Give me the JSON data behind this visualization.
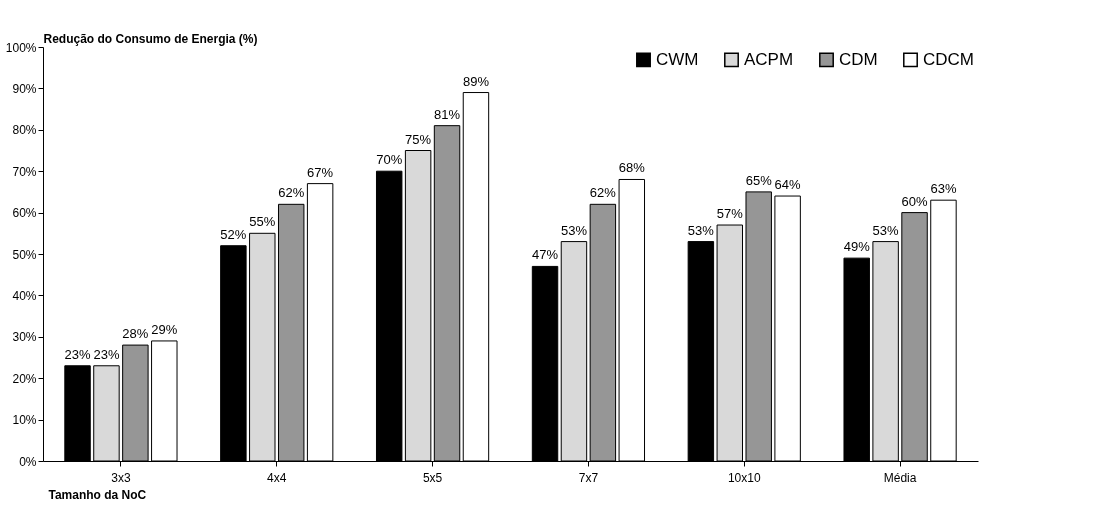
{
  "chart_data": {
    "type": "bar",
    "xlabel": "Tamanho da NoC",
    "ylabel": "Redução do Consumo de Energia (%)",
    "categories": [
      "3x3",
      "4x4",
      "5x5",
      "7x7",
      "10x10",
      "Média"
    ],
    "series": [
      {
        "name": "CWM",
        "color": "#000000",
        "values": [
          23,
          52,
          70,
          47,
          53,
          49
        ],
        "value_labels": [
          "23%",
          "52%",
          "70%",
          "47%",
          "53%",
          "49%"
        ]
      },
      {
        "name": "ACPM",
        "color": "#d9d9d9",
        "values": [
          23,
          55,
          75,
          53,
          57,
          53
        ],
        "value_labels": [
          "23%",
          "55%",
          "75%",
          "53%",
          "57%",
          "53%"
        ]
      },
      {
        "name": "CDM",
        "color": "#969696",
        "values": [
          28,
          62,
          81,
          62,
          65,
          60
        ],
        "value_labels": [
          "28%",
          "62%",
          "81%",
          "62%",
          "65%",
          "60%"
        ]
      },
      {
        "name": "CDCM",
        "color": "#ffffff",
        "values": [
          29,
          67,
          89,
          68,
          64,
          63
        ],
        "value_labels": [
          "29%",
          "67%",
          "89%",
          "68%",
          "64%",
          "63%"
        ]
      }
    ],
    "ylim": [
      0,
      100
    ],
    "yticks": [
      {
        "value": 0,
        "label": "0%"
      },
      {
        "value": 10,
        "label": "10%"
      },
      {
        "value": 20,
        "label": "20%"
      },
      {
        "value": 30,
        "label": "30%"
      },
      {
        "value": 40,
        "label": "40%"
      },
      {
        "value": 50,
        "label": "50%"
      },
      {
        "value": 60,
        "label": "60%"
      },
      {
        "value": 70,
        "label": "70%"
      },
      {
        "value": 80,
        "label": "80%"
      },
      {
        "value": 90,
        "label": "90%"
      },
      {
        "value": 100,
        "label": "100%"
      }
    ],
    "grid": false,
    "legend": "top right"
  }
}
